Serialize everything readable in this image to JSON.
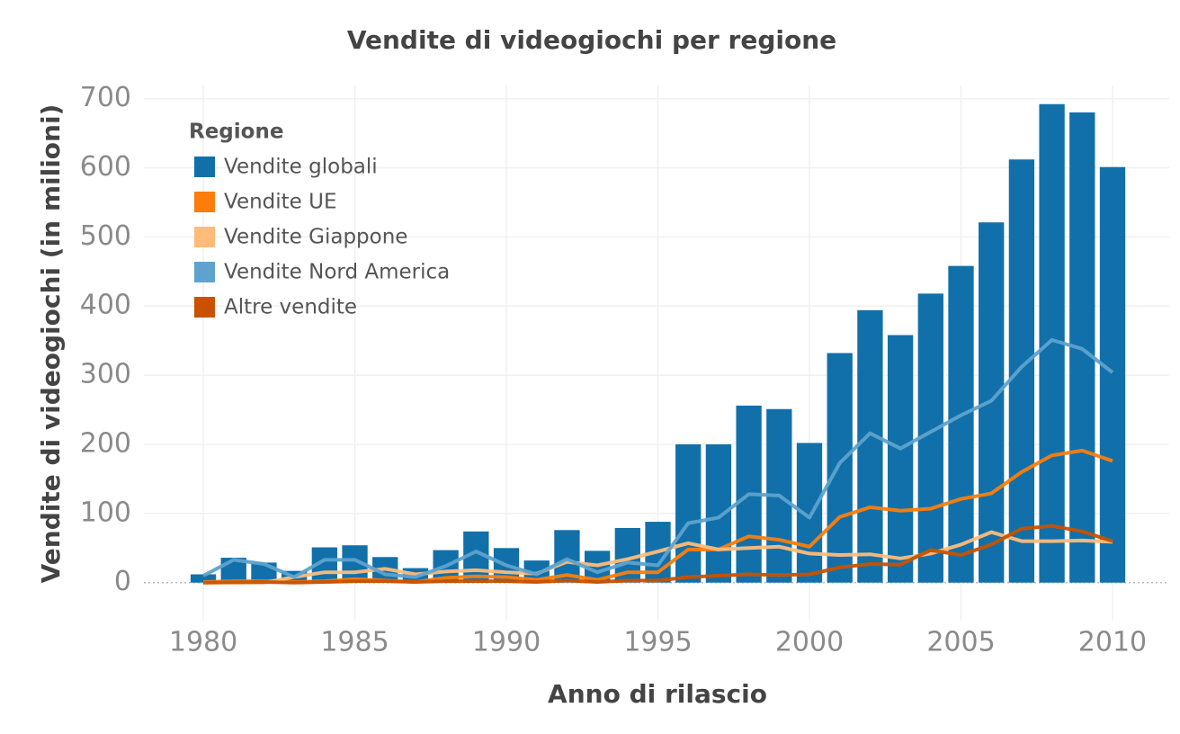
{
  "chart_data": {
    "type": "bar",
    "title": "Vendite di videogiochi per regione",
    "xlabel": "Anno di rilascio",
    "ylabel": "Vendite di videogiochi (in milioni)",
    "legend_title": "Regione",
    "legend": "upper left",
    "grid": true,
    "x": [
      1980,
      1981,
      1982,
      1983,
      1984,
      1985,
      1986,
      1987,
      1988,
      1989,
      1990,
      1991,
      1992,
      1993,
      1994,
      1995,
      1996,
      1997,
      1998,
      1999,
      2000,
      2001,
      2002,
      2003,
      2004,
      2005,
      2006,
      2007,
      2008,
      2009,
      2010
    ],
    "xlim": [
      1978.04,
      2011.87
    ],
    "xticks": [
      1980,
      1985,
      1990,
      1995,
      2000,
      2005,
      2010
    ],
    "ylim": [
      -55,
      719
    ],
    "yticks": [
      0,
      100,
      200,
      300,
      400,
      500,
      600,
      700
    ],
    "series": [
      {
        "name": "Vendite globali",
        "type": "bar",
        "color": "#1170aa",
        "values": [
          12,
          36,
          29,
          17,
          51,
          54,
          37,
          21,
          47,
          74,
          50,
          32,
          76,
          46,
          79,
          88,
          200,
          200,
          256,
          251,
          202,
          332,
          394,
          358,
          418,
          458,
          521,
          612,
          692,
          680,
          601
        ]
      },
      {
        "name": "Vendite UE",
        "type": "line",
        "color": "#fc7d0b",
        "values": [
          1,
          2,
          2,
          1,
          2,
          5,
          3,
          1,
          7,
          9,
          8,
          4,
          11,
          4,
          15,
          15,
          48,
          48,
          67,
          62,
          52,
          95,
          109,
          104,
          107,
          121,
          129,
          160,
          184,
          191,
          176
        ]
      },
      {
        "name": "Vendite Giappone",
        "type": "line",
        "color": "#ffbc79",
        "values": [
          0,
          0,
          0,
          8,
          15,
          15,
          20,
          12,
          16,
          18,
          15,
          13,
          30,
          25,
          34,
          45,
          57,
          48,
          50,
          52,
          42,
          40,
          41,
          35,
          42,
          55,
          73,
          60,
          60,
          61,
          59
        ]
      },
      {
        "name": "Vendite Nord America",
        "type": "line",
        "color": "#5fa2ce",
        "values": [
          10,
          33,
          27,
          8,
          33,
          33,
          12,
          8,
          24,
          45,
          25,
          12,
          34,
          15,
          29,
          25,
          86,
          94,
          128,
          126,
          94,
          173,
          216,
          194,
          218,
          242,
          263,
          312,
          351,
          338,
          304
        ]
      },
      {
        "name": "Altre vendite",
        "type": "line",
        "color": "#c85200",
        "values": [
          0,
          0.5,
          1,
          0,
          1,
          2,
          2,
          1,
          2,
          2,
          2,
          1,
          3,
          1,
          3,
          3,
          8,
          10,
          12,
          11,
          12,
          22,
          27,
          26,
          47,
          40,
          55,
          78,
          82,
          74,
          60
        ]
      }
    ]
  }
}
